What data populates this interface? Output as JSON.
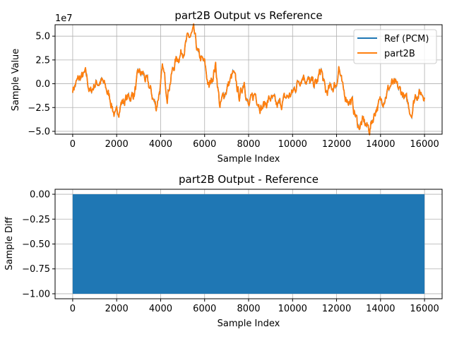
{
  "chart_data": [
    {
      "type": "line",
      "title": "part2B Output vs Reference",
      "xlabel": "Sample Index",
      "ylabel": "Sample Value",
      "y_offset_label": "1e7",
      "xlim": [
        -800,
        16800
      ],
      "ylim": [
        -5.3,
        6.2
      ],
      "y_scale_factor": 10000000,
      "grid": true,
      "legend_position": "upper-right",
      "x_ticks": [
        "0",
        "2000",
        "4000",
        "6000",
        "8000",
        "10000",
        "12000",
        "14000",
        "16000"
      ],
      "y_ticks": [
        "−5.0",
        "−2.5",
        "0.0",
        "2.5",
        "5.0"
      ],
      "y_tick_values": [
        -5,
        -2.5,
        0,
        2.5,
        5
      ],
      "x_tick_values": [
        0,
        2000,
        4000,
        6000,
        8000,
        10000,
        12000,
        14000,
        16000
      ],
      "series": [
        {
          "name": "Ref (PCM)",
          "color": "#1f77b4"
        },
        {
          "name": "part2B",
          "color": "#ff7f0e"
        }
      ],
      "x": [
        0,
        300,
        600,
        800,
        1000,
        1300,
        1500,
        1700,
        1950,
        2200,
        2500,
        2800,
        3000,
        3200,
        3500,
        3800,
        4000,
        4100,
        4300,
        4500,
        4700,
        5000,
        5200,
        5500,
        5700,
        6000,
        6200,
        6500,
        6700,
        6900,
        7300,
        7600,
        7800,
        8000,
        8300,
        8600,
        9000,
        9300,
        9700,
        10000,
        10300,
        10500,
        10800,
        11100,
        11300,
        11500,
        12000,
        12100,
        12300,
        12700,
        13000,
        13200,
        13500,
        13800,
        14000,
        14500,
        15000,
        15400,
        15600,
        16000
      ],
      "y": [
        -0.5,
        0.5,
        0.9,
        -1.0,
        0,
        0.3,
        -0.5,
        -1.5,
        -3.6,
        -2,
        -1.5,
        -1,
        1.0,
        1.0,
        -0.5,
        -2.5,
        0,
        1.5,
        -1,
        1,
        2.5,
        3.5,
        4.5,
        5.3,
        3,
        2,
        -0.5,
        2,
        -2.5,
        -1,
        1,
        -1.5,
        0.5,
        -2.5,
        -1,
        -2.5,
        -1.5,
        -2.5,
        -1.5,
        -1,
        0.5,
        1,
        0,
        0,
        1.5,
        -1,
        0,
        2,
        -1,
        -2,
        -4.5,
        -4,
        -4.8,
        -2.5,
        -2,
        0,
        -1,
        -3,
        -1,
        -1
      ]
    },
    {
      "type": "line",
      "title": "part2B Output - Reference",
      "xlabel": "Sample Index",
      "ylabel": "Sample Diff",
      "xlim": [
        -800,
        16800
      ],
      "ylim": [
        -1.05,
        0.05
      ],
      "grid": true,
      "x_ticks": [
        "0",
        "2000",
        "4000",
        "6000",
        "8000",
        "10000",
        "12000",
        "14000",
        "16000"
      ],
      "x_tick_values": [
        0,
        2000,
        4000,
        6000,
        8000,
        10000,
        12000,
        14000,
        16000
      ],
      "y_ticks": [
        "0.00",
        "−0.25",
        "−0.50",
        "−0.75",
        "−1.00"
      ],
      "y_tick_values": [
        0,
        -0.25,
        -0.5,
        -0.75,
        -1
      ],
      "series": [
        {
          "color": "#1f77b4",
          "x_range": [
            0,
            16000
          ],
          "values_set": [
            0,
            -1
          ]
        }
      ]
    }
  ]
}
